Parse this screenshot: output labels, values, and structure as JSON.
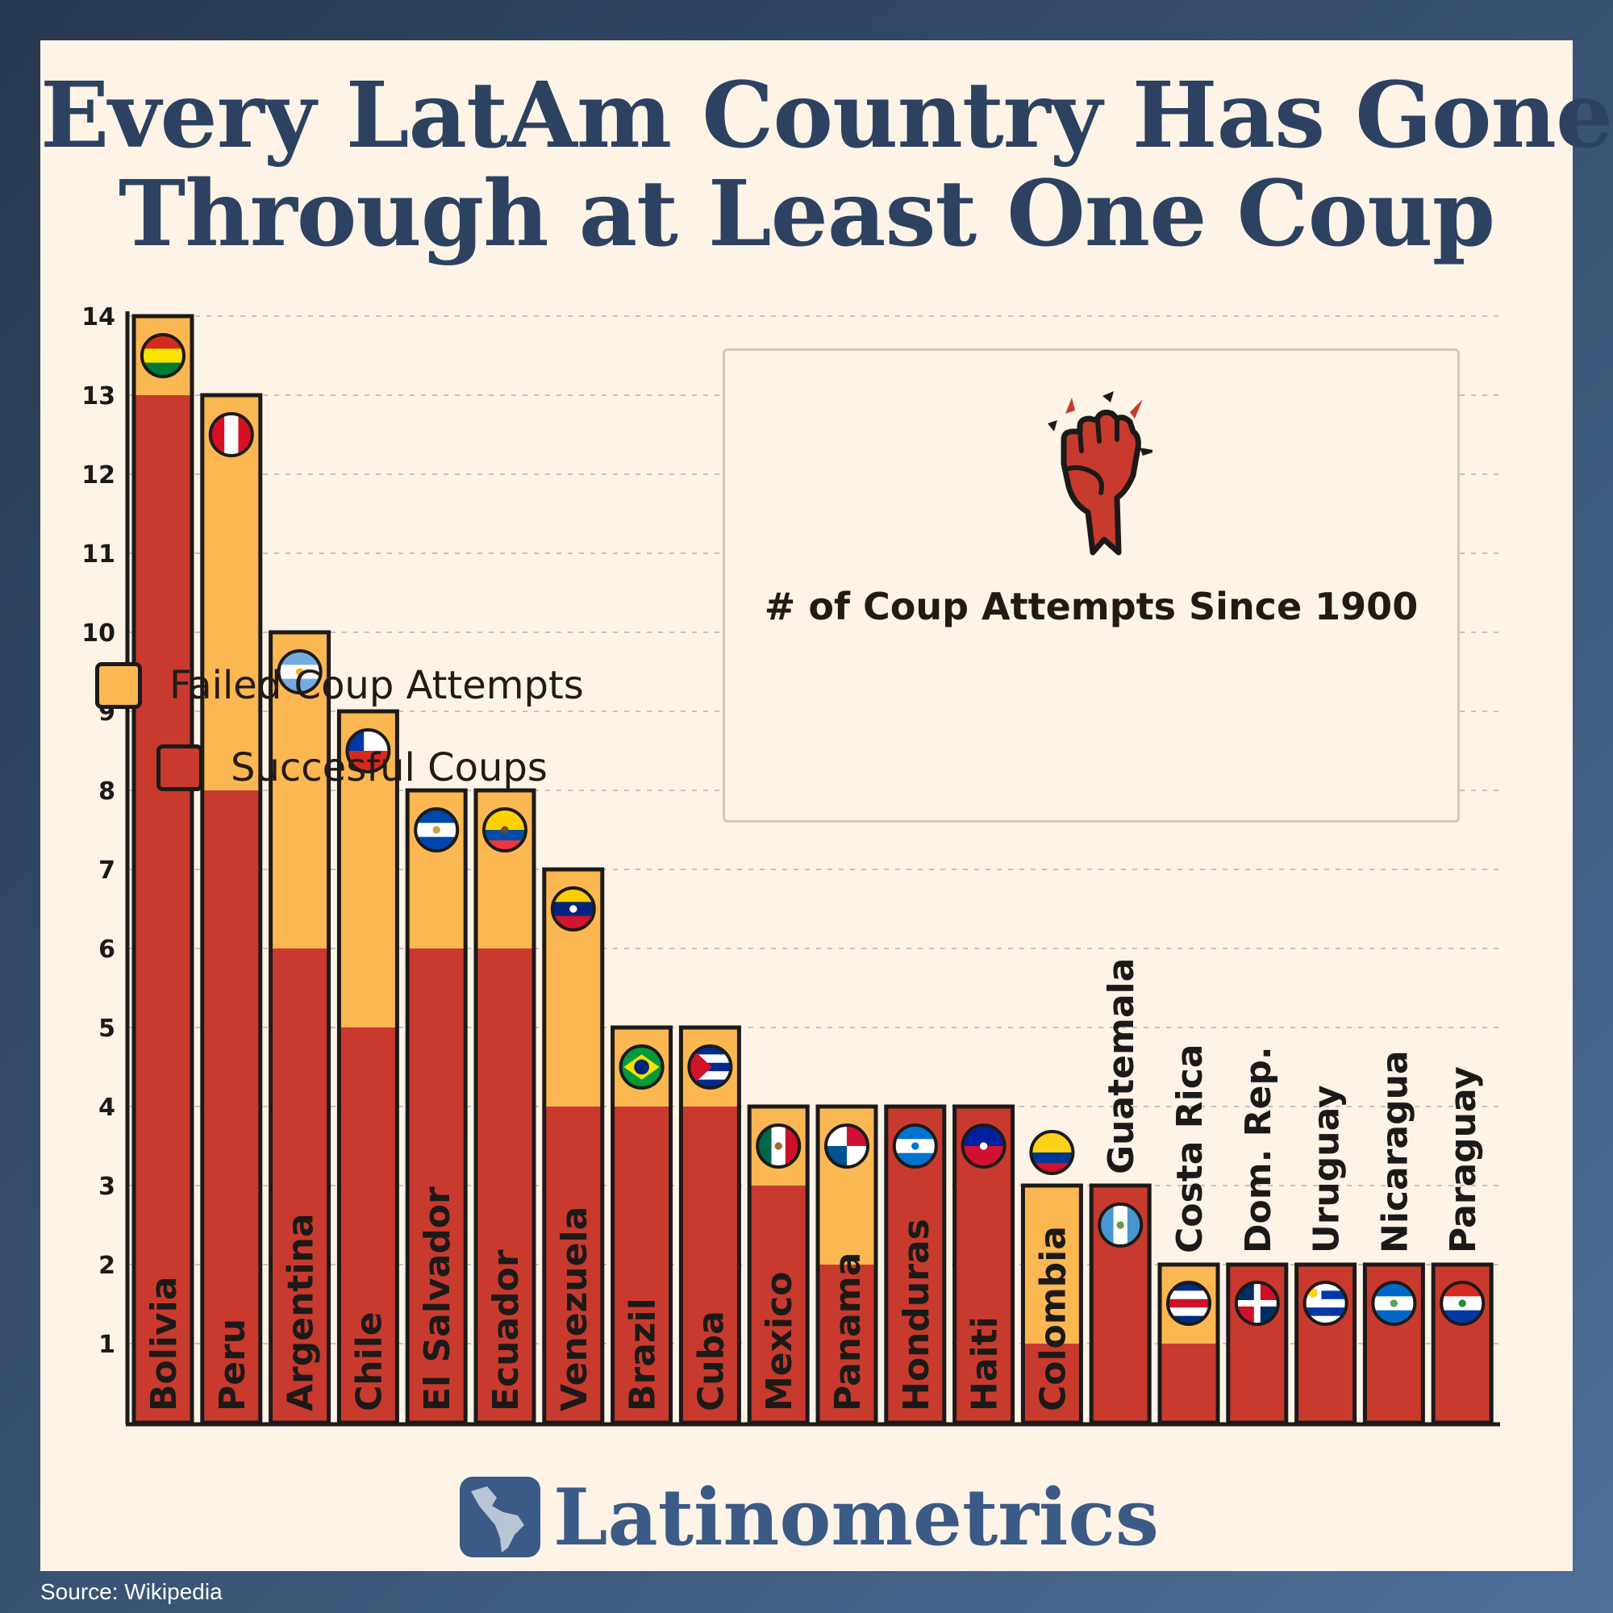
{
  "title": {
    "line1": "Every LatAm Country Has Gone",
    "line2": "Through at Least One Coup"
  },
  "legend": {
    "title": "# of Coup Attempts Since 1900",
    "failed_label": "Failed Coup Attempts",
    "success_label": "Succesful Coups"
  },
  "colors": {
    "failed": "#fbb752",
    "successful": "#c83a2e",
    "outline": "#1c1a18",
    "title": "#2c4260",
    "brand": "#3b5a85"
  },
  "icons": {
    "legend": "raised-fist-icon",
    "brand": "latin-america-map-icon",
    "bars": "country-flag-icon"
  },
  "brand": {
    "name": "Latinometrics"
  },
  "source": "Source: Wikipedia",
  "chart_data": {
    "type": "bar",
    "stacked": true,
    "title": "Every LatAm Country Has Gone Through at Least One Coup",
    "ylim": [
      0,
      14
    ],
    "yticks": [
      1,
      2,
      3,
      4,
      5,
      6,
      7,
      8,
      9,
      10,
      11,
      12,
      13,
      14
    ],
    "grid": true,
    "legend_position": "top-right",
    "categories": [
      "Bolivia",
      "Peru",
      "Argentina",
      "Chile",
      "El Salvador",
      "Ecuador",
      "Venezuela",
      "Brazil",
      "Cuba",
      "Mexico",
      "Panama",
      "Honduras",
      "Haiti",
      "Colombia",
      "Guatemala",
      "Costa Rica",
      "Dom. Rep.",
      "Uruguay",
      "Nicaragua",
      "Paraguay"
    ],
    "series": [
      {
        "name": "Succesful Coups",
        "values": [
          13,
          8,
          6,
          5,
          6,
          6,
          4,
          4,
          4,
          3,
          2,
          4,
          4,
          1,
          3,
          1,
          2,
          2,
          2,
          2
        ]
      },
      {
        "name": "Failed Coup Attempts",
        "values": [
          1,
          5,
          4,
          4,
          2,
          2,
          3,
          1,
          1,
          1,
          2,
          0,
          0,
          2,
          0,
          1,
          0,
          0,
          0,
          0
        ]
      }
    ]
  }
}
